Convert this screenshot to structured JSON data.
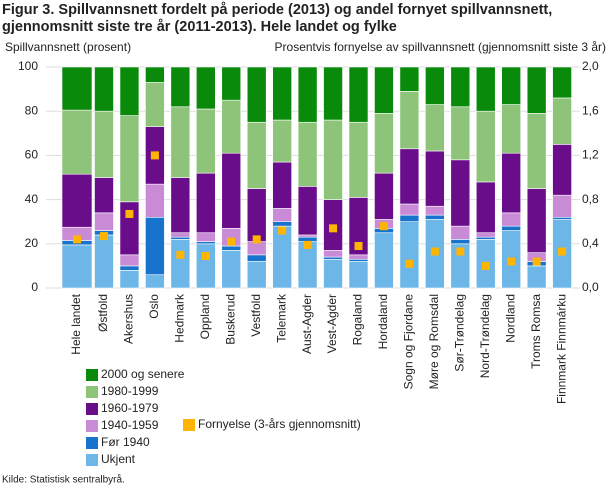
{
  "chart_data": {
    "type": "bar",
    "stacked": true,
    "title": [
      "Figur 3. Spillvannsnett fordelt på periode (2013) og andel fornyet spillvannsnett,",
      "gjennomsnitt siste tre år (2011-2013). Hele landet og fylke"
    ],
    "ylabel": "Spillvannsnett (prosent)",
    "y2label": "Prosentvis fornyelse av spillvannsnett (gjennomsnitt siste 3 år)",
    "source": "Kilde: Statistisk sentralbyrå.",
    "categories": [
      "Hele landet",
      null,
      "Østfold",
      "Akershus",
      "Oslo",
      "Hedmark",
      "Oppland",
      "Buskerud",
      "Vestfold",
      "Telemark",
      "Aust-Agder",
      "Vest-Agder",
      "Rogaland",
      "Hordaland",
      "Sogn og Fjordane",
      "Møre og Romsdal",
      "Sør-Trøndelag",
      "Nord-Trøndelag",
      "Nordland",
      "Troms Romsa",
      "Finnmark Finnmárku"
    ],
    "series": [
      {
        "name": "Ukjent",
        "color": "#6db7e8",
        "values": [
          19.5,
          null,
          24,
          8,
          6,
          22,
          20,
          17,
          12,
          28,
          21,
          13,
          12,
          25,
          30,
          31,
          20,
          22,
          26,
          10,
          31
        ]
      },
      {
        "name": "Før 1940",
        "color": "#1873cc",
        "values": [
          2,
          null,
          2,
          2,
          26,
          1,
          1,
          2,
          3,
          2,
          2,
          1,
          1,
          2,
          3,
          2,
          2,
          1,
          2,
          2,
          1
        ]
      },
      {
        "name": "1940-1959",
        "color": "#c98ad6",
        "values": [
          6,
          null,
          8,
          5,
          15,
          2,
          4,
          8,
          6,
          6,
          1,
          3,
          2,
          4,
          5,
          4,
          6,
          2,
          6,
          4,
          10
        ]
      },
      {
        "name": "1960-1979",
        "color": "#6a0d8a",
        "values": [
          24,
          null,
          16,
          24,
          26,
          25,
          27,
          34,
          24,
          21,
          22,
          23,
          26,
          21,
          25,
          25,
          30,
          23,
          27,
          29,
          23
        ]
      },
      {
        "name": "1980-1999",
        "color": "#8dc47a",
        "values": [
          29,
          null,
          30,
          39,
          20,
          32,
          29,
          24,
          30,
          19,
          29,
          36,
          34,
          27,
          26,
          21,
          24,
          32,
          22,
          34,
          21
        ]
      },
      {
        "name": "2000 og senere",
        "color": "#0a8a0a",
        "values": [
          19.5,
          null,
          20,
          22,
          7,
          18,
          19,
          15,
          25,
          24,
          25,
          24,
          25,
          21,
          11,
          17,
          18,
          20,
          17,
          21,
          14
        ]
      },
      {
        "name": "Fornyelse (3-års gjennomsnitt)",
        "color": "#ffb400",
        "axis": "y2",
        "marker": "square",
        "values": [
          0.44,
          null,
          0.47,
          0.67,
          1.2,
          0.3,
          0.29,
          0.42,
          0.44,
          0.52,
          0.39,
          0.54,
          0.38,
          0.56,
          0.22,
          0.33,
          0.33,
          0.2,
          0.24,
          0.24,
          0.33
        ]
      }
    ],
    "ylim": [
      0,
      100
    ],
    "yticks": [
      0,
      20,
      40,
      60,
      80,
      100
    ],
    "y2lim": [
      0,
      2
    ],
    "y2ticks": [
      {
        "value": 0,
        "label": "0,0"
      },
      {
        "value": 0.4,
        "label": "0,4"
      },
      {
        "value": 0.8,
        "label": "0,8"
      },
      {
        "value": 1.2,
        "label": "1,2"
      },
      {
        "value": 1.6,
        "label": "1,6"
      },
      {
        "value": 2,
        "label": "2,0"
      }
    ],
    "grid": true
  }
}
